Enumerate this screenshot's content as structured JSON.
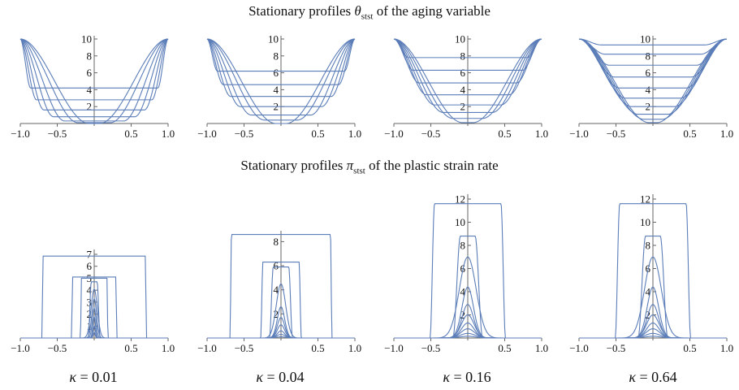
{
  "titles": {
    "top_prefix": "Stationary profiles ",
    "top_symbol": "θ",
    "top_sub": "stst",
    "top_suffix": " of the aging variable",
    "bottom_prefix": "Stationary profiles ",
    "bottom_symbol": "π",
    "bottom_sub": "stst",
    "bottom_suffix": " of the plastic strain rate"
  },
  "kappa_labels": [
    {
      "symbol": "κ",
      "text": " = 0.01"
    },
    {
      "symbol": "κ",
      "text": " = 0.04"
    },
    {
      "symbol": "κ",
      "text": " = 0.16"
    },
    {
      "symbol": "κ",
      "text": " = 0.64"
    }
  ],
  "colors": {
    "curve": "#5b7db8",
    "axis": "#666666"
  },
  "chart_data": [
    {
      "type": "line",
      "row": "theta",
      "kappa": 0.01,
      "xlim": [
        -1.0,
        1.0
      ],
      "ylim": [
        0,
        10
      ],
      "xticks": [
        "−1.0",
        "−0.5",
        "0.5",
        "1.0"
      ],
      "yticks": [
        "2",
        "4",
        "6",
        "8",
        "10"
      ],
      "curves": [
        {
          "min": 4.2,
          "width": 0.14
        },
        {
          "min": 2.8,
          "width": 0.22
        },
        {
          "min": 1.6,
          "width": 0.32
        },
        {
          "min": 0.8,
          "width": 0.45
        },
        {
          "min": 0.3,
          "width": 0.6
        },
        {
          "min": 0.1,
          "width": 0.78
        },
        {
          "min": 0,
          "width": 0.93
        }
      ]
    },
    {
      "type": "line",
      "row": "theta",
      "kappa": 0.04,
      "xlim": [
        -1.0,
        1.0
      ],
      "ylim": [
        0,
        10
      ],
      "xticks": [
        "−1.0",
        "−0.5",
        "0.5",
        "1.0"
      ],
      "yticks": [
        "2",
        "4",
        "6",
        "8",
        "10"
      ],
      "curves": [
        {
          "min": 6.2,
          "width": 0.14
        },
        {
          "min": 4.6,
          "width": 0.22
        },
        {
          "min": 3.2,
          "width": 0.32
        },
        {
          "min": 2.0,
          "width": 0.45
        },
        {
          "min": 1.0,
          "width": 0.6
        },
        {
          "min": 0.4,
          "width": 0.78
        },
        {
          "min": 0,
          "width": 0.93
        }
      ]
    },
    {
      "type": "line",
      "row": "theta",
      "kappa": 0.16,
      "xlim": [
        -1.0,
        1.0
      ],
      "ylim": [
        0,
        10
      ],
      "xticks": [
        "−1.0",
        "−0.5",
        "0.5",
        "1.0"
      ],
      "yticks": [
        "2",
        "4",
        "6",
        "8",
        "10"
      ],
      "curves": [
        {
          "min": 7.8,
          "width": 0.2
        },
        {
          "min": 6.3,
          "width": 0.26
        },
        {
          "min": 4.8,
          "width": 0.34
        },
        {
          "min": 3.4,
          "width": 0.44
        },
        {
          "min": 2.2,
          "width": 0.55
        },
        {
          "min": 1.3,
          "width": 0.67
        },
        {
          "min": 0.6,
          "width": 0.8
        },
        {
          "min": 0.1,
          "width": 0.93
        }
      ]
    },
    {
      "type": "line",
      "row": "theta",
      "kappa": 0.64,
      "xlim": [
        -1.0,
        1.0
      ],
      "ylim": [
        0,
        10
      ],
      "xticks": [
        "−1.0",
        "−0.5",
        "0.5",
        "1.0"
      ],
      "yticks": [
        "2",
        "4",
        "6",
        "8",
        "10"
      ],
      "curves": [
        {
          "min": 9.3,
          "width": 0.3
        },
        {
          "min": 8.2,
          "width": 0.35
        },
        {
          "min": 6.9,
          "width": 0.41
        },
        {
          "min": 5.5,
          "width": 0.48
        },
        {
          "min": 4.2,
          "width": 0.55
        },
        {
          "min": 3.0,
          "width": 0.63
        },
        {
          "min": 2.0,
          "width": 0.71
        },
        {
          "min": 1.1,
          "width": 0.8
        },
        {
          "min": 0.5,
          "width": 0.88
        },
        {
          "min": 0.1,
          "width": 0.95
        }
      ]
    },
    {
      "type": "line",
      "row": "pi",
      "kappa": 0.01,
      "xlim": [
        -1.0,
        1.0
      ],
      "ylim": [
        0,
        7
      ],
      "xticks": [
        "−1.0",
        "−0.5",
        "0.5",
        "1.0"
      ],
      "yticks": [
        "1",
        "2",
        "3",
        "4",
        "5",
        "6",
        "7"
      ],
      "curves": [
        {
          "height": 6.85,
          "half": 0.7,
          "edge": 0.01
        },
        {
          "height": 5.1,
          "half": 0.3,
          "edge": 0.01
        },
        {
          "height": 5.0,
          "half": 0.18,
          "edge": 0.01
        },
        {
          "height": 4.7,
          "half": 0.06,
          "edge": 0.04
        },
        {
          "height": 4.1,
          "half": 0.03,
          "edge": 0.03
        },
        {
          "height": 3.3,
          "half": 0.015,
          "edge": 0.03
        },
        {
          "height": 2.5,
          "half": 0.01,
          "edge": 0.025
        },
        {
          "height": 1.8,
          "half": 0.005,
          "edge": 0.02
        },
        {
          "height": 1.0,
          "half": 0.003,
          "edge": 0.02
        },
        {
          "height": 0.5,
          "half": 0.002,
          "edge": 0.015
        }
      ]
    },
    {
      "type": "line",
      "row": "pi",
      "kappa": 0.04,
      "xlim": [
        -1.0,
        1.0
      ],
      "ylim": [
        0,
        8.5
      ],
      "xticks": [
        "−1.0",
        "−0.5",
        "0.5",
        "1.0"
      ],
      "yticks": [
        "2",
        "4",
        "6",
        "8"
      ],
      "curves": [
        {
          "height": 8.6,
          "half": 0.68,
          "edge": 0.02
        },
        {
          "height": 6.3,
          "half": 0.26,
          "edge": 0.03
        },
        {
          "height": 5.9,
          "half": 0.13,
          "edge": 0.05
        },
        {
          "height": 4.5,
          "half": 0.03,
          "edge": 0.06
        },
        {
          "height": 2.6,
          "half": 0.01,
          "edge": 0.06
        },
        {
          "height": 1.7,
          "half": 0.01,
          "edge": 0.06
        },
        {
          "height": 1.1,
          "half": 0.0,
          "edge": 0.07
        },
        {
          "height": 0.6,
          "half": 0.0,
          "edge": 0.07
        },
        {
          "height": 0.3,
          "half": 0.0,
          "edge": 0.08
        },
        {
          "height": 0.1,
          "half": 0.0,
          "edge": 0.09
        }
      ]
    },
    {
      "type": "line",
      "row": "pi",
      "kappa": 0.16,
      "xlim": [
        -1.0,
        1.0
      ],
      "ylim": [
        0,
        12
      ],
      "xticks": [
        "−1.0",
        "−0.5",
        "0.5",
        "1.0"
      ],
      "yticks": [
        "2",
        "4",
        "6",
        "8",
        "10",
        "12"
      ],
      "curves": [
        {
          "height": 11.6,
          "half": 0.48,
          "edge": 0.06
        },
        {
          "height": 8.8,
          "half": 0.15,
          "edge": 0.1
        },
        {
          "height": 7.0,
          "half": 0.05,
          "edge": 0.11
        },
        {
          "height": 4.4,
          "half": 0.0,
          "edge": 0.11
        },
        {
          "height": 2.9,
          "half": 0.0,
          "edge": 0.11
        },
        {
          "height": 2.0,
          "half": 0.0,
          "edge": 0.12
        },
        {
          "height": 1.3,
          "half": 0.0,
          "edge": 0.12
        },
        {
          "height": 0.8,
          "half": 0.0,
          "edge": 0.13
        },
        {
          "height": 0.4,
          "half": 0.0,
          "edge": 0.14
        },
        {
          "height": 0.15,
          "half": 0.0,
          "edge": 0.15
        }
      ]
    },
    {
      "type": "line",
      "row": "pi",
      "kappa": 0.64,
      "xlim": [
        -1.0,
        1.0
      ],
      "ylim": [
        0,
        12
      ],
      "xticks": [
        "−1.0",
        "−0.5",
        "0.5",
        "1.0"
      ],
      "yticks": [
        "2",
        "4",
        "6",
        "8",
        "10",
        "12"
      ],
      "curves": [
        {
          "height": 11.6,
          "half": 0.48,
          "edge": 0.06
        },
        {
          "height": 8.8,
          "half": 0.15,
          "edge": 0.1
        },
        {
          "height": 7.0,
          "half": 0.05,
          "edge": 0.11
        },
        {
          "height": 4.4,
          "half": 0.0,
          "edge": 0.11
        },
        {
          "height": 2.9,
          "half": 0.0,
          "edge": 0.11
        },
        {
          "height": 2.0,
          "half": 0.0,
          "edge": 0.12
        },
        {
          "height": 1.3,
          "half": 0.0,
          "edge": 0.12
        },
        {
          "height": 0.8,
          "half": 0.0,
          "edge": 0.13
        },
        {
          "height": 0.4,
          "half": 0.0,
          "edge": 0.14
        },
        {
          "height": 0.15,
          "half": 0.0,
          "edge": 0.15
        }
      ]
    }
  ]
}
